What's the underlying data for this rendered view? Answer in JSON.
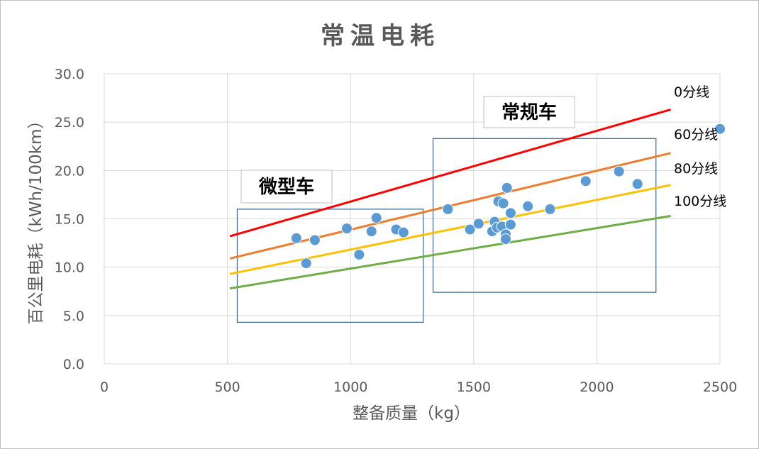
{
  "chart_data": {
    "type": "scatter",
    "title": "常温电耗",
    "xlabel": "整备质量（kg）",
    "ylabel": "百公里电耗（kWh/100km）",
    "xlim": [
      0,
      2500
    ],
    "ylim": [
      0,
      30
    ],
    "xticks": [
      "0",
      "500",
      "1000",
      "1500",
      "2000",
      "2500"
    ],
    "yticks": [
      "0.0",
      "5.0",
      "10.0",
      "15.0",
      "20.0",
      "25.0",
      "30.0"
    ],
    "grid": true,
    "points": [
      {
        "x": 780,
        "y": 13.0
      },
      {
        "x": 820,
        "y": 10.4
      },
      {
        "x": 855,
        "y": 12.8
      },
      {
        "x": 985,
        "y": 14.0
      },
      {
        "x": 1035,
        "y": 11.3
      },
      {
        "x": 1085,
        "y": 13.7
      },
      {
        "x": 1105,
        "y": 15.1
      },
      {
        "x": 1185,
        "y": 13.9
      },
      {
        "x": 1215,
        "y": 13.6
      },
      {
        "x": 1395,
        "y": 16.0
      },
      {
        "x": 1485,
        "y": 13.9
      },
      {
        "x": 1520,
        "y": 14.5
      },
      {
        "x": 1575,
        "y": 13.7
      },
      {
        "x": 1585,
        "y": 14.7
      },
      {
        "x": 1595,
        "y": 14.1
      },
      {
        "x": 1600,
        "y": 16.8
      },
      {
        "x": 1615,
        "y": 14.2
      },
      {
        "x": 1620,
        "y": 16.6
      },
      {
        "x": 1630,
        "y": 13.4
      },
      {
        "x": 1630,
        "y": 12.9
      },
      {
        "x": 1635,
        "y": 18.2
      },
      {
        "x": 1650,
        "y": 15.6
      },
      {
        "x": 1650,
        "y": 14.4
      },
      {
        "x": 1720,
        "y": 16.3
      },
      {
        "x": 1810,
        "y": 16.0
      },
      {
        "x": 1955,
        "y": 18.9
      },
      {
        "x": 2090,
        "y": 19.9
      },
      {
        "x": 2165,
        "y": 18.6
      },
      {
        "x": 2500,
        "y": 24.3
      }
    ],
    "reference_lines": [
      {
        "name": "0分线",
        "color": "#ff0000",
        "x": [
          510,
          2300
        ],
        "y": [
          13.2,
          26.3
        ]
      },
      {
        "name": "60分线",
        "color": "#ed7d31",
        "x": [
          510,
          2300
        ],
        "y": [
          10.9,
          21.8
        ]
      },
      {
        "name": "80分线",
        "color": "#ffc000",
        "x": [
          510,
          2300
        ],
        "y": [
          9.3,
          18.5
        ]
      },
      {
        "name": "100分线",
        "color": "#70ad47",
        "x": [
          510,
          2300
        ],
        "y": [
          7.8,
          15.3
        ]
      }
    ],
    "groups": [
      {
        "label": "微型车",
        "xrange": [
          540,
          1295
        ],
        "yrange": [
          4.3,
          16.0
        ]
      },
      {
        "label": "常规车",
        "xrange": [
          1335,
          2240
        ],
        "yrange": [
          7.4,
          23.3
        ]
      }
    ],
    "colors": {
      "point": "#5b9bd5",
      "group_box": "#41719c",
      "grid": "#d9d9d9"
    }
  }
}
